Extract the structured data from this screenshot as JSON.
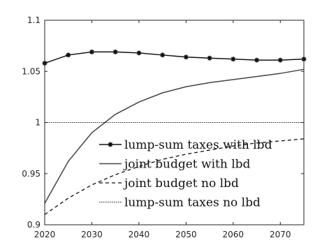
{
  "chart_data": {
    "type": "line",
    "title": "",
    "xlabel": "",
    "ylabel": "",
    "xlim": [
      2020,
      2075
    ],
    "ylim": [
      0.9,
      1.1
    ],
    "x_ticks": [
      "2020",
      "2030",
      "2040",
      "2050",
      "2060",
      "2070"
    ],
    "y_ticks": [
      "0.9",
      "0.95",
      "1",
      "1.05",
      "1.1"
    ],
    "grid": false,
    "legend_position": "lower-right",
    "x": [
      2020,
      2025,
      2030,
      2035,
      2040,
      2045,
      2050,
      2055,
      2060,
      2065,
      2070,
      2075
    ],
    "series": [
      {
        "name": "lump-sum taxes with lbd",
        "style": "solid-star-markers",
        "color": "#111111",
        "values": [
          1.058,
          1.066,
          1.069,
          1.069,
          1.068,
          1.066,
          1.064,
          1.063,
          1.062,
          1.061,
          1.061,
          1.062
        ]
      },
      {
        "name": "joint budget with lbd",
        "style": "solid",
        "color": "#444444",
        "values": [
          0.921,
          0.962,
          0.99,
          1.008,
          1.02,
          1.029,
          1.035,
          1.039,
          1.042,
          1.045,
          1.048,
          1.052
        ]
      },
      {
        "name": "joint budget no lbd",
        "style": "dashed",
        "color": "#111111",
        "values": [
          0.91,
          0.926,
          0.939,
          0.949,
          0.957,
          0.964,
          0.969,
          0.973,
          0.977,
          0.98,
          0.982,
          0.984
        ]
      },
      {
        "name": "lump-sum taxes no lbd",
        "style": "dotted",
        "color": "#111111",
        "values": [
          1.0,
          1.0,
          1.0,
          1.0,
          1.0,
          1.0,
          1.0,
          1.0,
          1.0,
          1.0,
          1.0,
          1.0
        ]
      }
    ]
  }
}
